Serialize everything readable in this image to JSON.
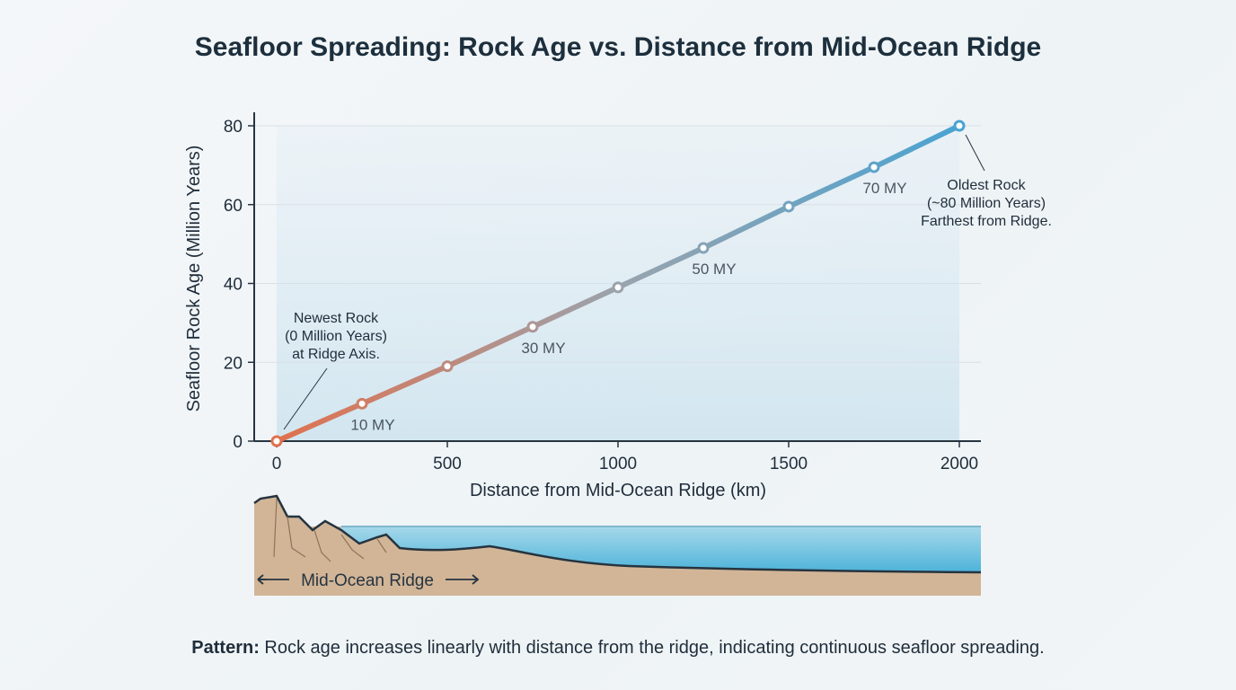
{
  "chart_data": {
    "type": "line",
    "title": "Seafloor Spreading: Rock Age vs. Distance from Mid-Ocean Ridge",
    "xlabel": "Distance from Mid-Ocean Ridge (km)",
    "ylabel": "Seafloor Rock Age (Million Years)",
    "xlim": [
      0,
      2000
    ],
    "ylim": [
      0,
      80
    ],
    "xticks": [
      0,
      500,
      1000,
      1500,
      2000
    ],
    "yticks": [
      0,
      20,
      40,
      60,
      80
    ],
    "grid": "horizontal",
    "x": [
      0,
      250,
      500,
      750,
      1000,
      1250,
      1500,
      1750,
      2000
    ],
    "y": [
      0,
      9.5,
      19,
      29,
      39,
      49,
      59.5,
      69.5,
      80
    ],
    "colors": {
      "start": "#e0714e",
      "middle": "#9aa3ad",
      "end": "#4aa3d2"
    },
    "point_labels": [
      {
        "x": 250,
        "text": "10 MY"
      },
      {
        "x": 750,
        "text": "30 MY"
      },
      {
        "x": 1250,
        "text": "50 MY"
      },
      {
        "x": 1750,
        "text": "70 MY"
      }
    ],
    "annotations": [
      {
        "x": 0,
        "y": 0,
        "lines": [
          "Newest Rock",
          "(0 Million Years)",
          "at Ridge Axis."
        ]
      },
      {
        "x": 2000,
        "y": 80,
        "lines": [
          "Oldest Rock",
          "(~80 Million Years)",
          "Farthest from Ridge."
        ]
      }
    ]
  },
  "illustration": {
    "label": "Mid-Ocean Ridge"
  },
  "caption": {
    "bold": "Pattern:",
    "text": " Rock age increases linearly with distance from the ridge, indicating continuous seafloor spreading."
  }
}
